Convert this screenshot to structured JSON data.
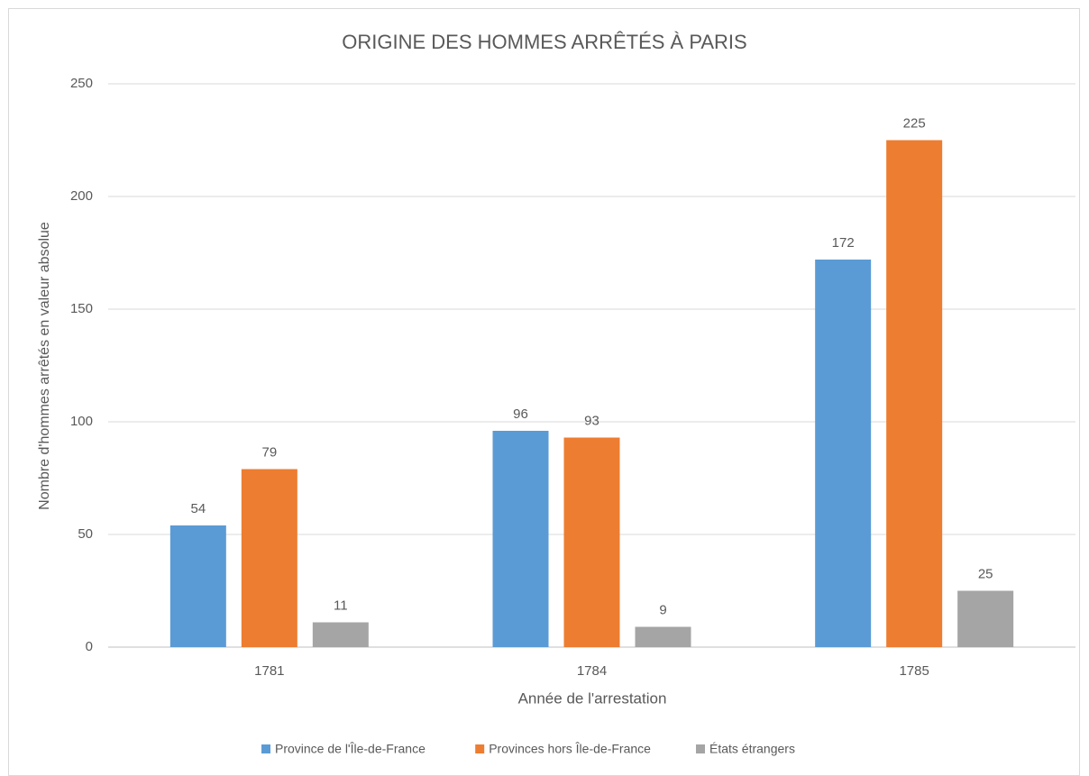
{
  "chart_data": {
    "type": "bar",
    "title": "ORIGINE DES HOMMES ARRÊTÉS À PARIS",
    "xlabel": "Année de l'arrestation",
    "ylabel": "Nombre d'hommes arrêtés en valeur absolue",
    "categories": [
      "1781",
      "1784",
      "1785"
    ],
    "series": [
      {
        "name": "Province de l'Île-de-France",
        "color": "#5b9bd5",
        "values": [
          54,
          96,
          172
        ]
      },
      {
        "name": "Provinces hors Île-de-France",
        "color": "#ed7d31",
        "values": [
          79,
          93,
          225
        ]
      },
      {
        "name": "États étrangers",
        "color": "#a5a5a5",
        "values": [
          11,
          9,
          25
        ]
      }
    ],
    "ylim": [
      0,
      250
    ],
    "yticks": [
      0,
      50,
      100,
      150,
      200,
      250
    ],
    "grid": true,
    "legend": "bottom"
  }
}
